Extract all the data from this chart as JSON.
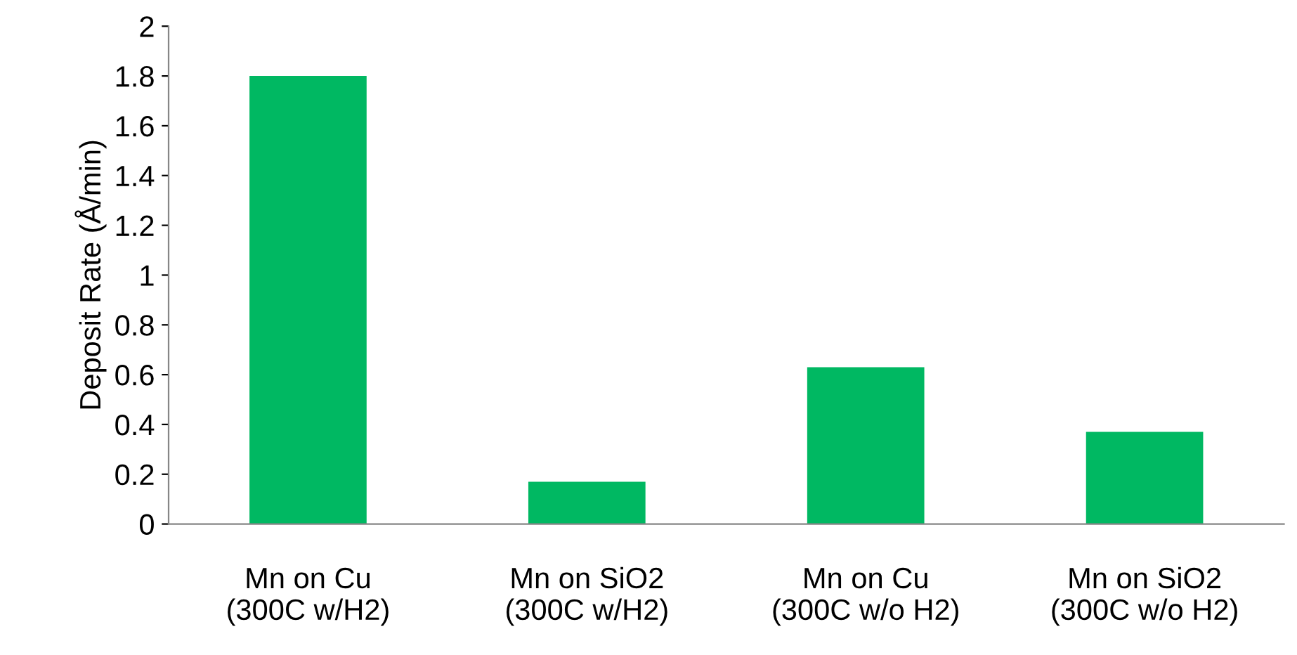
{
  "chart_data": {
    "type": "bar",
    "ylabel": "Deposit Rate (Å/min)",
    "categories": [
      "Mn on Cu\n(300C w/H2)",
      "Mn on SiO2\n(300C w/H2)",
      "Mn on Cu\n(300C w/o H2)",
      "Mn on SiO2\n(300C w/o H2)"
    ],
    "values": [
      1.8,
      0.17,
      0.63,
      0.37
    ],
    "color": "#00b862",
    "ylim": [
      0,
      2
    ],
    "yticks": [
      0,
      0.2,
      0.4,
      0.6,
      0.8,
      1,
      1.2,
      1.4,
      1.6,
      1.8,
      2
    ],
    "grid": false,
    "legend": false
  }
}
